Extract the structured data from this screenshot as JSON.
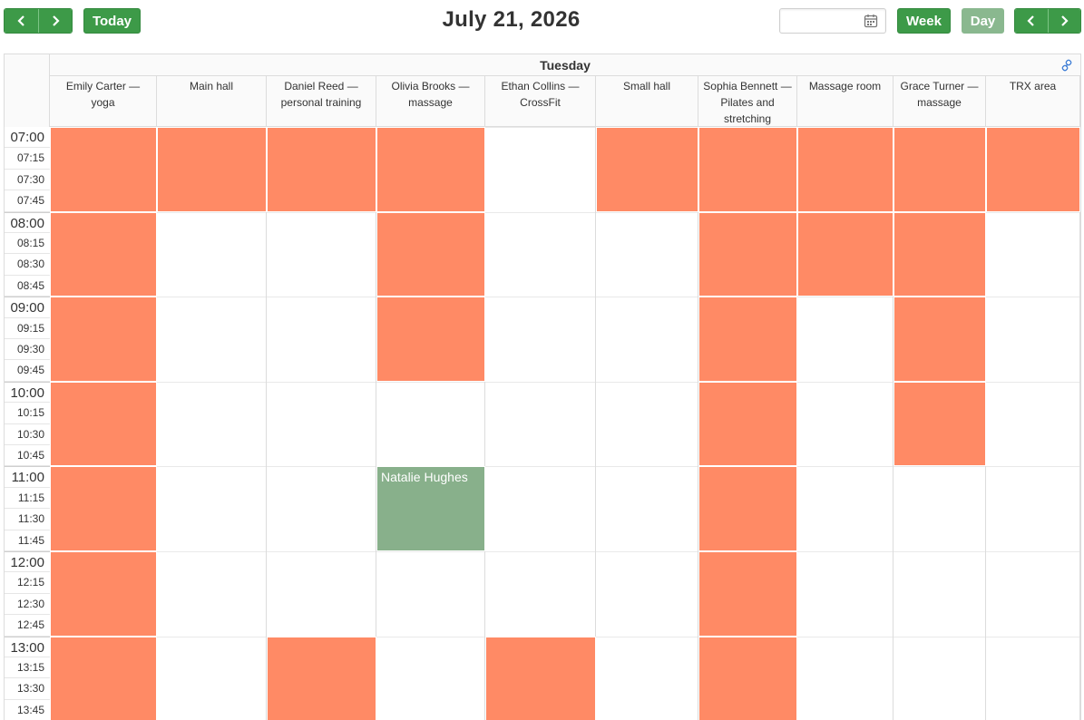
{
  "toolbar": {
    "prev_label": "‹",
    "next_label": "›",
    "today_label": "Today",
    "title": "July 21, 2026",
    "date_input_value": "",
    "date_input_placeholder": "",
    "week_label": "Week",
    "day_label": "Day"
  },
  "calendar": {
    "day_name": "Tuesday",
    "resources": [
      {
        "line1": "Emily Carter —",
        "line2": "yoga"
      },
      {
        "line1": "Main hall",
        "line2": ""
      },
      {
        "line1": "Daniel Reed —",
        "line2": "personal training"
      },
      {
        "line1": "Olivia Brooks —",
        "line2": "massage"
      },
      {
        "line1": "Ethan Collins —",
        "line2": "CrossFit"
      },
      {
        "line1": "Small hall",
        "line2": ""
      },
      {
        "line1": "Sophia Bennett —",
        "line2": "Pilates and stretching"
      },
      {
        "line1": "Massage room",
        "line2": ""
      },
      {
        "line1": "Grace Turner —",
        "line2": "massage"
      },
      {
        "line1": "TRX area",
        "line2": ""
      }
    ],
    "times": [
      "07:00",
      "07:15",
      "07:30",
      "07:45",
      "08:00",
      "08:15",
      "08:30",
      "08:45",
      "09:00",
      "09:15",
      "09:30",
      "09:45",
      "10:00",
      "10:15",
      "10:30",
      "10:45",
      "11:00",
      "11:15",
      "11:30",
      "11:45",
      "12:00",
      "12:15",
      "12:30",
      "12:45",
      "13:00",
      "13:15",
      "13:30",
      "13:45"
    ],
    "booked_color": "#ff8a65",
    "event_color": "#88b08b",
    "accent_color": "#3d9a48",
    "blocks": [
      {
        "resource": 0,
        "start": "07:00",
        "end": "08:00",
        "kind": "booked",
        "label": ""
      },
      {
        "resource": 0,
        "start": "08:00",
        "end": "09:00",
        "kind": "booked",
        "label": ""
      },
      {
        "resource": 0,
        "start": "09:00",
        "end": "10:00",
        "kind": "booked",
        "label": ""
      },
      {
        "resource": 0,
        "start": "10:00",
        "end": "11:00",
        "kind": "booked",
        "label": ""
      },
      {
        "resource": 0,
        "start": "11:00",
        "end": "12:00",
        "kind": "booked",
        "label": ""
      },
      {
        "resource": 0,
        "start": "12:00",
        "end": "13:00",
        "kind": "booked",
        "label": ""
      },
      {
        "resource": 0,
        "start": "13:00",
        "end": "14:00",
        "kind": "booked",
        "label": ""
      },
      {
        "resource": 1,
        "start": "07:00",
        "end": "08:00",
        "kind": "booked",
        "label": ""
      },
      {
        "resource": 2,
        "start": "07:00",
        "end": "08:00",
        "kind": "booked",
        "label": ""
      },
      {
        "resource": 2,
        "start": "13:00",
        "end": "14:00",
        "kind": "booked",
        "label": ""
      },
      {
        "resource": 3,
        "start": "07:00",
        "end": "08:00",
        "kind": "booked",
        "label": ""
      },
      {
        "resource": 3,
        "start": "08:00",
        "end": "09:00",
        "kind": "booked",
        "label": ""
      },
      {
        "resource": 3,
        "start": "09:00",
        "end": "10:00",
        "kind": "booked",
        "label": ""
      },
      {
        "resource": 3,
        "start": "11:00",
        "end": "12:00",
        "kind": "event",
        "label": "Natalie Hughes"
      },
      {
        "resource": 4,
        "start": "13:00",
        "end": "14:00",
        "kind": "booked",
        "label": ""
      },
      {
        "resource": 5,
        "start": "07:00",
        "end": "08:00",
        "kind": "booked",
        "label": ""
      },
      {
        "resource": 6,
        "start": "07:00",
        "end": "08:00",
        "kind": "booked",
        "label": ""
      },
      {
        "resource": 6,
        "start": "08:00",
        "end": "09:00",
        "kind": "booked",
        "label": ""
      },
      {
        "resource": 6,
        "start": "09:00",
        "end": "10:00",
        "kind": "booked",
        "label": ""
      },
      {
        "resource": 6,
        "start": "10:00",
        "end": "11:00",
        "kind": "booked",
        "label": ""
      },
      {
        "resource": 6,
        "start": "11:00",
        "end": "12:00",
        "kind": "booked",
        "label": ""
      },
      {
        "resource": 6,
        "start": "12:00",
        "end": "13:00",
        "kind": "booked",
        "label": ""
      },
      {
        "resource": 6,
        "start": "13:00",
        "end": "14:00",
        "kind": "booked",
        "label": ""
      },
      {
        "resource": 7,
        "start": "07:00",
        "end": "08:00",
        "kind": "booked",
        "label": ""
      },
      {
        "resource": 7,
        "start": "08:00",
        "end": "09:00",
        "kind": "booked",
        "label": ""
      },
      {
        "resource": 8,
        "start": "07:00",
        "end": "08:00",
        "kind": "booked",
        "label": ""
      },
      {
        "resource": 8,
        "start": "08:00",
        "end": "09:00",
        "kind": "booked",
        "label": ""
      },
      {
        "resource": 8,
        "start": "09:00",
        "end": "10:00",
        "kind": "booked",
        "label": ""
      },
      {
        "resource": 8,
        "start": "10:00",
        "end": "11:00",
        "kind": "booked",
        "label": ""
      },
      {
        "resource": 9,
        "start": "07:00",
        "end": "08:00",
        "kind": "booked",
        "label": ""
      }
    ]
  },
  "icons": {
    "prev": "chevron-left-icon",
    "next": "chevron-right-icon",
    "calendar": "calendar-icon",
    "link": "link-icon"
  }
}
